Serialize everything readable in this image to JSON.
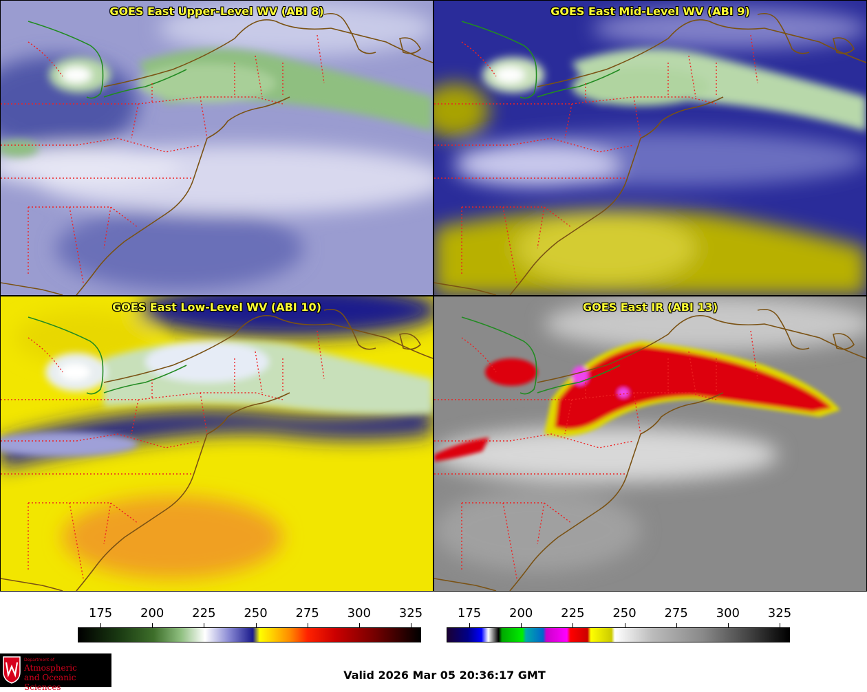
{
  "panels": [
    {
      "title": "GOES East Upper-Level WV (ABI 8)",
      "icon": "water-vapor-imagery"
    },
    {
      "title": "GOES East Mid-Level WV (ABI 9)",
      "icon": "water-vapor-imagery"
    },
    {
      "title": "GOES East Low-Level WV (ABI 10)",
      "icon": "water-vapor-imagery"
    },
    {
      "title": "GOES East IR (ABI 13)",
      "icon": "infrared-imagery"
    }
  ],
  "colorbars": [
    {
      "name": "wv-colorbar",
      "ticks": [
        "175",
        "200",
        "225",
        "250",
        "275",
        "300",
        "325"
      ],
      "min": 164,
      "max": 330
    },
    {
      "name": "ir-colorbar",
      "ticks": [
        "175",
        "200",
        "225",
        "250",
        "275",
        "300",
        "325"
      ],
      "min": 164,
      "max": 330
    }
  ],
  "logo": {
    "dept": "Department of",
    "line1": "Atmospheric",
    "line2": "and Oceanic Sciences",
    "colors": {
      "background": "#000000",
      "text": "#d6001c"
    }
  },
  "valid_time": "Valid 2026 Mar 05 20:36:17 GMT",
  "colors": {
    "title": "#ffff33",
    "coast": "#7a5214",
    "state_border": "#ee2222",
    "intl_border": "#228b22"
  }
}
